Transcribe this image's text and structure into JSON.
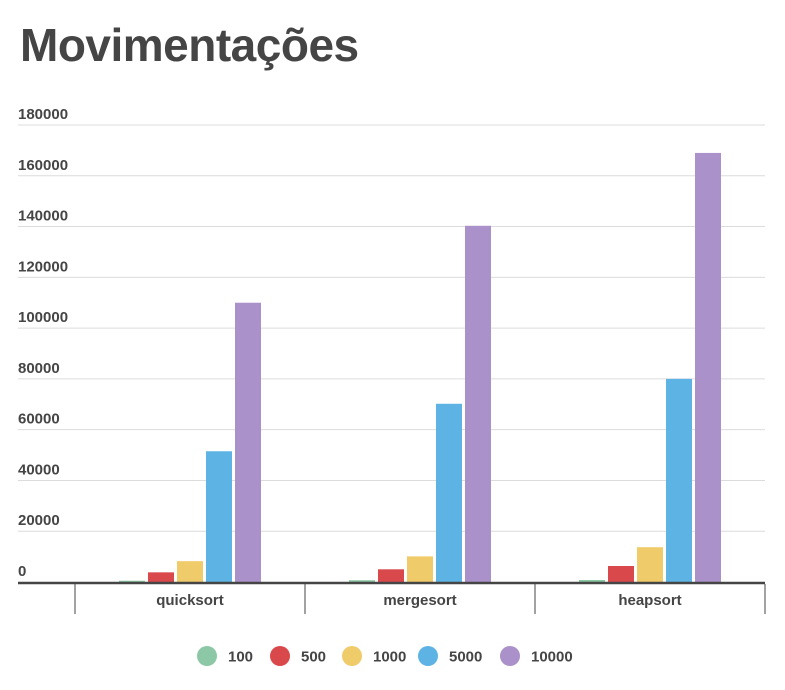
{
  "chart_data": {
    "type": "bar",
    "title": "Movimentações",
    "categories": [
      "quicksort",
      "mergesort",
      "heapsort"
    ],
    "series": [
      {
        "name": "100",
        "color": "#8cc8a5",
        "values": [
          500,
          700,
          800
        ]
      },
      {
        "name": "500",
        "color": "#d9484b",
        "values": [
          3800,
          5000,
          6300
        ]
      },
      {
        "name": "1000",
        "color": "#f0cb69",
        "values": [
          8200,
          10100,
          13700
        ]
      },
      {
        "name": "5000",
        "color": "#5db4e4",
        "values": [
          51500,
          70200,
          80000
        ]
      },
      {
        "name": "10000",
        "color": "#ab91c9",
        "values": [
          110000,
          140300,
          169000
        ]
      }
    ],
    "y_ticks": [
      "0",
      "20000",
      "40000",
      "60000",
      "80000",
      "100000",
      "120000",
      "140000",
      "160000",
      "180000"
    ],
    "ylim": [
      0,
      180000
    ],
    "grid": true,
    "legend_position": "bottom"
  }
}
